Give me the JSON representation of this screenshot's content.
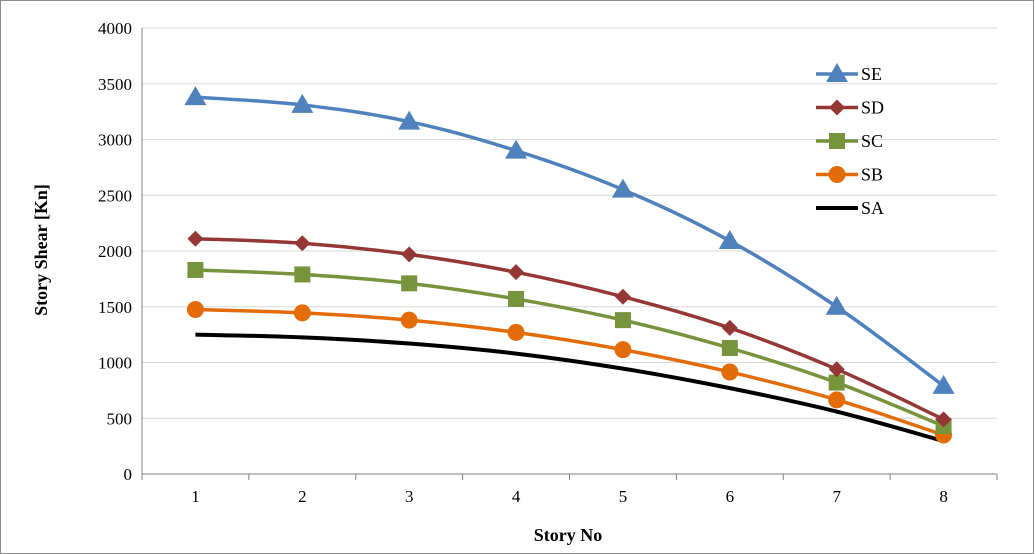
{
  "chart_data": {
    "type": "line",
    "xlabel": "Story No",
    "ylabel": "Story Shear [Kn]",
    "categories": [
      "1",
      "2",
      "3",
      "4",
      "5",
      "6",
      "7",
      "8"
    ],
    "ylim": [
      0,
      4000
    ],
    "yticks": [
      0,
      500,
      1000,
      1500,
      2000,
      2500,
      3000,
      3500,
      4000
    ],
    "grid": true,
    "legend_position": "top-right",
    "series": [
      {
        "name": "SE",
        "color": "#4f81bd",
        "marker": "triangle",
        "values": [
          3380,
          3310,
          3160,
          2900,
          2550,
          2090,
          1500,
          790
        ]
      },
      {
        "name": "SD",
        "color": "#953735",
        "marker": "diamond",
        "values": [
          2110,
          2070,
          1970,
          1810,
          1590,
          1310,
          940,
          490
        ]
      },
      {
        "name": "SC",
        "color": "#77933c",
        "marker": "square",
        "values": [
          1830,
          1790,
          1710,
          1570,
          1380,
          1130,
          820,
          430
        ]
      },
      {
        "name": "SB",
        "color": "#e36c09",
        "marker": "circle",
        "values": [
          1475,
          1445,
          1380,
          1270,
          1115,
          915,
          665,
          350
        ]
      },
      {
        "name": "SA",
        "color": "#000000",
        "marker": "none",
        "values": [
          1250,
          1225,
          1170,
          1080,
          945,
          770,
          560,
          295
        ]
      }
    ]
  }
}
